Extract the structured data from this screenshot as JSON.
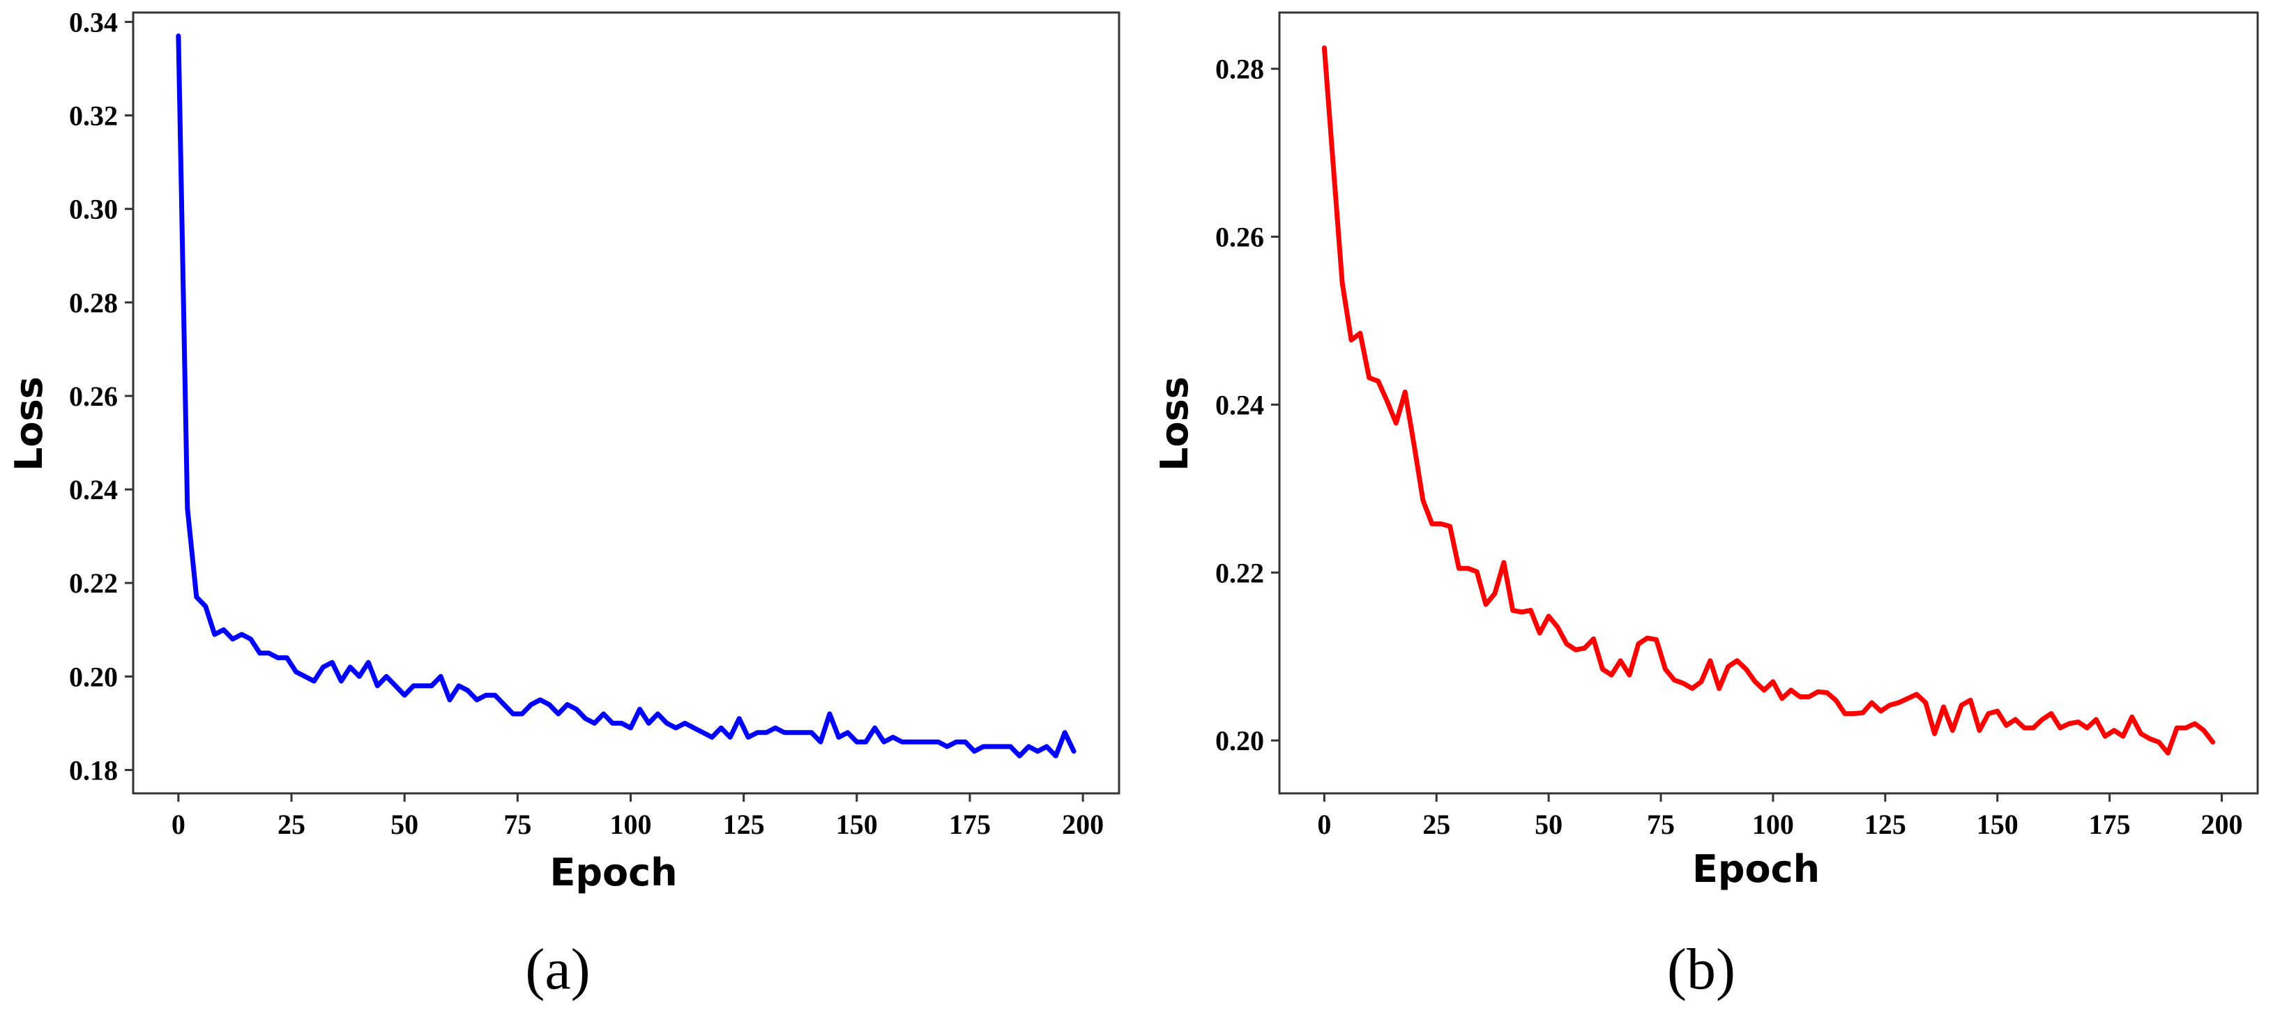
{
  "chart_data": [
    {
      "type": "line",
      "panel_label": "(a)",
      "xlabel": "Epoch",
      "ylabel": "Loss",
      "xlim": [
        -10,
        208
      ],
      "ylim": [
        0.175,
        0.342
      ],
      "xticks": [
        0,
        25,
        50,
        75,
        100,
        125,
        150,
        175,
        200
      ],
      "yticks": [
        0.18,
        0.2,
        0.22,
        0.24,
        0.26,
        0.28,
        0.3,
        0.32,
        0.34
      ],
      "ytick_labels": [
        "0.18",
        "0.20",
        "0.22",
        "0.24",
        "0.26",
        "0.28",
        "0.30",
        "0.32",
        "0.34"
      ],
      "grid": false,
      "series": [
        {
          "color": "#0000ff",
          "x": [
            0,
            2,
            4,
            6,
            8,
            10,
            12,
            14,
            16,
            18,
            20,
            22,
            24,
            26,
            28,
            30,
            32,
            34,
            36,
            38,
            40,
            42,
            44,
            46,
            48,
            50,
            52,
            54,
            56,
            58,
            60,
            62,
            64,
            66,
            68,
            70,
            72,
            74,
            76,
            78,
            80,
            82,
            84,
            86,
            88,
            90,
            92,
            94,
            96,
            98,
            100,
            102,
            104,
            106,
            108,
            110,
            112,
            114,
            116,
            118,
            120,
            122,
            124,
            126,
            128,
            130,
            132,
            134,
            136,
            138,
            140,
            142,
            144,
            146,
            148,
            150,
            152,
            154,
            156,
            158,
            160,
            162,
            164,
            166,
            168,
            170,
            172,
            174,
            176,
            178,
            180,
            182,
            184,
            186,
            188,
            190,
            192,
            194,
            196,
            198
          ],
          "values": [
            0.337,
            0.236,
            0.217,
            0.215,
            0.209,
            0.21,
            0.208,
            0.209,
            0.208,
            0.205,
            0.205,
            0.204,
            0.204,
            0.201,
            0.2,
            0.199,
            0.202,
            0.203,
            0.199,
            0.202,
            0.2,
            0.203,
            0.198,
            0.2,
            0.198,
            0.196,
            0.198,
            0.198,
            0.198,
            0.2,
            0.195,
            0.198,
            0.197,
            0.195,
            0.196,
            0.196,
            0.194,
            0.192,
            0.192,
            0.194,
            0.195,
            0.194,
            0.192,
            0.194,
            0.193,
            0.191,
            0.19,
            0.192,
            0.19,
            0.19,
            0.189,
            0.193,
            0.19,
            0.192,
            0.19,
            0.189,
            0.19,
            0.189,
            0.188,
            0.187,
            0.189,
            0.187,
            0.191,
            0.187,
            0.188,
            0.188,
            0.189,
            0.188,
            0.188,
            0.188,
            0.188,
            0.186,
            0.192,
            0.187,
            0.188,
            0.186,
            0.186,
            0.189,
            0.186,
            0.187,
            0.186,
            0.186,
            0.186,
            0.186,
            0.186,
            0.185,
            0.186,
            0.186,
            0.184,
            0.185,
            0.185,
            0.185,
            0.185,
            0.183,
            0.185,
            0.184,
            0.185,
            0.183,
            0.188,
            0.184
          ]
        }
      ]
    },
    {
      "type": "line",
      "panel_label": "(b)",
      "xlabel": "Epoch",
      "ylabel": "Loss",
      "xlim": [
        -10,
        208
      ],
      "ylim": [
        0.1937,
        0.2867
      ],
      "xticks": [
        0,
        25,
        50,
        75,
        100,
        125,
        150,
        175,
        200
      ],
      "yticks": [
        0.2,
        0.22,
        0.24,
        0.26,
        0.28
      ],
      "ytick_labels": [
        "0.20",
        "0.22",
        "0.24",
        "0.26",
        "0.28"
      ],
      "grid": false,
      "series": [
        {
          "color": "#ff0000",
          "x": [
            0,
            2,
            4,
            6,
            8,
            10,
            12,
            14,
            16,
            18,
            20,
            22,
            24,
            26,
            28,
            30,
            32,
            34,
            36,
            38,
            40,
            42,
            44,
            46,
            48,
            50,
            52,
            54,
            56,
            58,
            60,
            62,
            64,
            66,
            68,
            70,
            72,
            74,
            76,
            78,
            80,
            82,
            84,
            86,
            88,
            90,
            92,
            94,
            96,
            98,
            100,
            102,
            104,
            106,
            108,
            110,
            112,
            114,
            116,
            118,
            120,
            122,
            124,
            126,
            128,
            130,
            132,
            134,
            136,
            138,
            140,
            142,
            144,
            146,
            148,
            150,
            152,
            154,
            156,
            158,
            160,
            162,
            164,
            166,
            168,
            170,
            172,
            174,
            176,
            178,
            180,
            182,
            184,
            186,
            188,
            190,
            192,
            194,
            196,
            198
          ],
          "values": [
            0.2825,
            0.2685,
            0.2545,
            0.2477,
            0.2485,
            0.2432,
            0.2428,
            0.2404,
            0.2378,
            0.2415,
            0.2352,
            0.2286,
            0.2258,
            0.2258,
            0.2255,
            0.2205,
            0.2205,
            0.2201,
            0.2162,
            0.2175,
            0.2212,
            0.2155,
            0.2153,
            0.2155,
            0.2128,
            0.2148,
            0.2135,
            0.2115,
            0.2108,
            0.211,
            0.2121,
            0.2085,
            0.2078,
            0.2095,
            0.2078,
            0.2115,
            0.2122,
            0.212,
            0.2085,
            0.2072,
            0.2068,
            0.2062,
            0.207,
            0.2095,
            0.2062,
            0.2088,
            0.2095,
            0.2085,
            0.207,
            0.206,
            0.207,
            0.205,
            0.206,
            0.2052,
            0.2052,
            0.2058,
            0.2057,
            0.2048,
            0.2032,
            0.2032,
            0.2033,
            0.2045,
            0.2035,
            0.2042,
            0.2045,
            0.205,
            0.2055,
            0.2045,
            0.2008,
            0.204,
            0.2012,
            0.2042,
            0.2048,
            0.2012,
            0.2032,
            0.2035,
            0.2018,
            0.2025,
            0.2015,
            0.2015,
            0.2025,
            0.2032,
            0.2015,
            0.202,
            0.2022,
            0.2015,
            0.2025,
            0.2005,
            0.2012,
            0.2005,
            0.2028,
            0.2008,
            0.2002,
            0.1998,
            0.1985,
            0.2015,
            0.2015,
            0.202,
            0.2012,
            0.1998
          ]
        }
      ]
    }
  ]
}
